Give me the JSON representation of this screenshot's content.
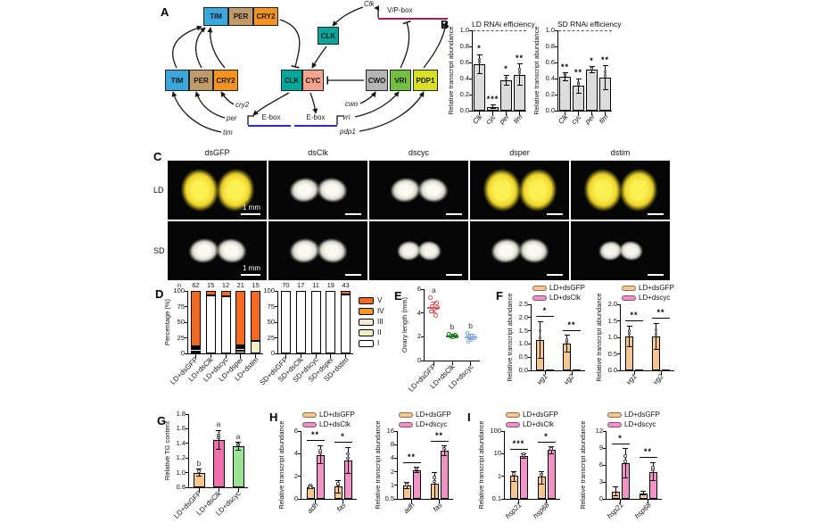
{
  "panels": {
    "A": "A",
    "B": "B",
    "C": "C",
    "D": "D",
    "E": "E",
    "F": "F",
    "G": "G",
    "H": "H",
    "I": "I"
  },
  "diagram": {
    "complex_top": [
      "TIM",
      "PER",
      "CRY2"
    ],
    "proteins_left": [
      "TIM",
      "PER",
      "CRY2"
    ],
    "clk_gene": "Clk",
    "vp_box": "V/P-box",
    "clk_protein": "CLK",
    "core": [
      "CLK",
      "CYC"
    ],
    "right_proteins": [
      "CWO",
      "VRI",
      "PDP1"
    ],
    "ebox_left": "E-box",
    "ebox_right": "E-box",
    "genes_left": [
      "cry2",
      "per",
      "tim"
    ],
    "genes_right": [
      "cwo",
      "vri",
      "pdp1"
    ],
    "colors": {
      "tim": "#3BA7DD",
      "per": "#C19A6B",
      "cry2": "#F7941D",
      "clk": "#00A79C",
      "cyc": "#F5A28E",
      "cwo": "#B5B5B5",
      "vri": "#72BF44",
      "pdp1": "#D9E021",
      "vp_line": "#9E1F63",
      "ebox_line": "#2B2BD5"
    }
  },
  "panelC": {
    "col_labels": [
      "dsGFP",
      "dsClk",
      "dscyc",
      "dsper",
      "dstim"
    ],
    "row_labels": [
      "LD",
      "SD"
    ],
    "scale_bar": "1 mm",
    "tiles": [
      [
        "yellow-large",
        "white-medium",
        "white-medium",
        "yellow-large",
        "yellow-large"
      ],
      [
        "white-medium",
        "white-medium",
        "white-small",
        "white-medium",
        "white-small"
      ]
    ]
  },
  "stages": [
    {
      "label": "V",
      "color": "#F26A21"
    },
    {
      "label": "IV",
      "color": "#F79420"
    },
    {
      "label": "III",
      "color": "#F3E8D0"
    },
    {
      "label": "II",
      "color": "#EFEFC2"
    },
    {
      "label": "I",
      "color": "#FFFFFF"
    }
  ],
  "charts": {
    "b1": {
      "type": "bars",
      "title": "LD RNAi efficiency",
      "ylabel": "Relative transcript abundance",
      "ymin": 0,
      "ymax": 1.0,
      "dash": 1.0,
      "dots": true,
      "yticks": [
        {
          "v": 0,
          "t": "0.0"
        },
        {
          "v": 0.2,
          "t": "0.2"
        },
        {
          "v": 0.4,
          "t": "0.4"
        },
        {
          "v": 0.6,
          "t": "0.6"
        },
        {
          "v": 0.8,
          "t": "0.8"
        },
        {
          "v": 1.0,
          "t": "1.0"
        }
      ],
      "categories": [
        "Clk",
        "cyc",
        "per",
        "tim"
      ],
      "italic": true,
      "series": [
        {
          "name": "",
          "color": "#DCDCDC",
          "values": [
            0.58,
            0.05,
            0.38,
            0.45
          ],
          "err": [
            0.12,
            0.02,
            0.06,
            0.13
          ]
        }
      ],
      "sig": [
        "*",
        "***",
        "*",
        "**"
      ],
      "sig_mode": "bar"
    },
    "b2": {
      "type": "bars",
      "title": "SD RNAi efficiency",
      "ylabel": "Relative transcript abundance",
      "ymin": 0,
      "ymax": 1.0,
      "dash": 1.0,
      "dots": true,
      "yticks": [
        {
          "v": 0,
          "t": "0.0"
        },
        {
          "v": 0.2,
          "t": "0.2"
        },
        {
          "v": 0.4,
          "t": "0.4"
        },
        {
          "v": 0.6,
          "t": "0.6"
        },
        {
          "v": 0.8,
          "t": "0.8"
        },
        {
          "v": 1.0,
          "t": "1.0"
        }
      ],
      "categories": [
        "Clk",
        "cyc",
        "per",
        "tim"
      ],
      "italic": true,
      "series": [
        {
          "name": "",
          "color": "#DCDCDC",
          "values": [
            0.42,
            0.31,
            0.51,
            0.41
          ],
          "err": [
            0.05,
            0.09,
            0.04,
            0.15
          ]
        }
      ],
      "sig": [
        "**",
        "**",
        "*",
        "**"
      ],
      "sig_mode": "bar"
    },
    "d1": {
      "type": "stacked",
      "ylabel": "Percentage (%)",
      "ymin": 0,
      "ymax": 100,
      "yticks": [
        {
          "v": 0,
          "t": "0"
        },
        {
          "v": 25,
          "t": "25"
        },
        {
          "v": 50,
          "t": "50"
        },
        {
          "v": 75,
          "t": "75"
        },
        {
          "v": 100,
          "t": "100"
        }
      ],
      "categories": [
        "LD+dsGFP",
        "LD+dsClk",
        "LD+dscyc",
        "LD+dsper",
        "LD+dstim"
      ],
      "stacks": [
        [
          89,
          3,
          3,
          3,
          2
        ],
        [
          7,
          0,
          0,
          0,
          93
        ],
        [
          9,
          0,
          0,
          0,
          91
        ],
        [
          87,
          2,
          3,
          4,
          4
        ],
        [
          80,
          0,
          0,
          20,
          0
        ]
      ],
      "n": [
        "62",
        "15",
        "12",
        "21",
        "15"
      ],
      "n_prefix": "n"
    },
    "d2": {
      "type": "stacked",
      "ymin": 0,
      "ymax": 100,
      "yticks": [
        {
          "v": 0,
          "t": "0"
        },
        {
          "v": 25,
          "t": "25"
        },
        {
          "v": 50,
          "t": "50"
        },
        {
          "v": 75,
          "t": "75"
        },
        {
          "v": 100,
          "t": "100"
        }
      ],
      "categories": [
        "SD+dsGFP",
        "SD+dsClk",
        "SD+dscyc",
        "SD+dsper",
        "SD+dstim"
      ],
      "stacks": [
        [
          0,
          0,
          0,
          0,
          100
        ],
        [
          0,
          0,
          0,
          0,
          100
        ],
        [
          0,
          0,
          0,
          0,
          100
        ],
        [
          0,
          0,
          0,
          0,
          100
        ],
        [
          5,
          0,
          0,
          0,
          95
        ]
      ],
      "n": [
        "70",
        "17",
        "11",
        "19",
        "43"
      ]
    },
    "e": {
      "type": "scatter",
      "ylabel": "Ovary length (mm)",
      "ymin": 0,
      "ymax": 6,
      "yticks": [
        {
          "v": 0,
          "t": "0"
        },
        {
          "v": 2,
          "t": "2"
        },
        {
          "v": 4,
          "t": "4"
        },
        {
          "v": 6,
          "t": "6"
        }
      ],
      "categories": [
        "LD+dsGFP",
        "LD+dsClk",
        "LD+dscyc"
      ],
      "groups": [
        {
          "color": "#D85C5C",
          "letter": "a",
          "mean": 4.5,
          "err": 0.45,
          "points": [
            5.3,
            4.85,
            4.6,
            4.5,
            4.35,
            4.15,
            3.8
          ]
        },
        {
          "color": "#1F7A1F",
          "letter": "b",
          "mean": 2.1,
          "err": 0.08,
          "points": [
            2.22,
            2.15,
            2.1,
            2.05,
            2.0
          ]
        },
        {
          "color": "#7FA9D9",
          "letter": "b",
          "mean": 2.0,
          "err": 0.2,
          "points": [
            2.3,
            2.1,
            2.0,
            1.9,
            1.75,
            1.62
          ]
        }
      ]
    },
    "f1": {
      "type": "bars",
      "legend": true,
      "ylabel": "Relative transcript abundance",
      "ymin": 0,
      "ymax": 2.5,
      "dots": true,
      "yticks": [
        {
          "v": 0,
          "t": "0.0"
        },
        {
          "v": 0.5,
          "t": "0.5"
        },
        {
          "v": 1.0,
          "t": "1.0"
        },
        {
          "v": 1.5,
          "t": "1.5"
        },
        {
          "v": 2.0,
          "t": "2.0"
        },
        {
          "v": 2.5,
          "t": "2.5"
        }
      ],
      "categories": [
        "vg1",
        "vg2"
      ],
      "italic": true,
      "series": [
        {
          "name": "LD+dsGFP",
          "color": "#F7C78E",
          "values": [
            1.15,
            1.0
          ],
          "err": [
            0.7,
            0.32
          ]
        },
        {
          "name": "LD+dsClk",
          "color": "#F193C7",
          "values": [
            0.03,
            0.03
          ],
          "err": [
            0,
            0
          ]
        }
      ],
      "sig": [
        "*",
        "**"
      ],
      "sig_mode": "pair"
    },
    "f2": {
      "type": "bars",
      "legend": true,
      "ylabel": "Relative transcript abundance",
      "ymin": 0,
      "ymax": 2.0,
      "dots": true,
      "yticks": [
        {
          "v": 0,
          "t": "0.0"
        },
        {
          "v": 0.5,
          "t": "0.5"
        },
        {
          "v": 1.0,
          "t": "1.0"
        },
        {
          "v": 1.5,
          "t": "1.5"
        },
        {
          "v": 2.0,
          "t": "2.0"
        }
      ],
      "categories": [
        "vg1",
        "vg2"
      ],
      "italic": true,
      "series": [
        {
          "name": "LD+dsGFP",
          "color": "#F7C78E",
          "values": [
            1.03,
            1.03
          ],
          "err": [
            0.32,
            0.4
          ]
        },
        {
          "name": "LD+dscyc",
          "color": "#F193C7",
          "values": [
            0.03,
            0.03
          ],
          "err": [
            0,
            0
          ]
        }
      ],
      "sig": [
        "**",
        "**"
      ],
      "sig_mode": "pair"
    },
    "g": {
      "type": "bars",
      "ylabel": "Relative TG content",
      "ymin": 0.8,
      "ymax": 1.8,
      "dots": true,
      "yticks": [
        {
          "v": 0.8,
          "t": "0.8"
        },
        {
          "v": 1.0,
          "t": "1.0"
        },
        {
          "v": 1.2,
          "t": "1.2"
        },
        {
          "v": 1.4,
          "t": "1.4"
        },
        {
          "v": 1.6,
          "t": "1.6"
        },
        {
          "v": 1.8,
          "t": "1.8"
        }
      ],
      "categories": [
        "LD+dsGFP",
        "LD+dsClk",
        "LD+dscyc"
      ],
      "series": [
        {
          "name": "",
          "colors": [
            "#F7C78E",
            "#F170AC",
            "#9BE493"
          ],
          "values": [
            1.0,
            1.45,
            1.36
          ],
          "err": [
            0.05,
            0.13,
            0.05
          ]
        }
      ],
      "letters": [
        "b",
        "a",
        "a"
      ]
    },
    "h1": {
      "type": "bars",
      "legend": true,
      "ylabel": "Relative transcript abundance",
      "ymin": 0,
      "ymax": 6,
      "dots": true,
      "yticks": [
        {
          "v": 0,
          "t": "0"
        },
        {
          "v": 2,
          "t": "2"
        },
        {
          "v": 4,
          "t": "4"
        },
        {
          "v": 6,
          "t": "6"
        }
      ],
      "categories": [
        "adh",
        "fas"
      ],
      "italic": true,
      "series": [
        {
          "name": "LD+dsGFP",
          "color": "#F7C78E",
          "values": [
            1.0,
            1.1
          ],
          "err": [
            0.12,
            0.55
          ]
        },
        {
          "name": "LD+dsClk",
          "color": "#F193C7",
          "values": [
            3.9,
            3.4
          ],
          "err": [
            0.8,
            1.15
          ]
        }
      ],
      "sig": [
        "**",
        "*"
      ],
      "sig_mode": "pair"
    },
    "h2": {
      "type": "bars",
      "legend": true,
      "ylabel": "Relative transcript abundance",
      "scale": "log",
      "ymin": 0.5,
      "ymax": 16,
      "dots": true,
      "yticks": [
        {
          "v": 0.5,
          "t": "0.5"
        },
        {
          "v": 1,
          "t": "1"
        },
        {
          "v": 2,
          "t": "2"
        },
        {
          "v": 4,
          "t": "4"
        },
        {
          "v": 8,
          "t": "8"
        },
        {
          "v": 16,
          "t": "16"
        }
      ],
      "categories": [
        "adh",
        "fas"
      ],
      "italic": true,
      "series": [
        {
          "name": "LD+dsGFP",
          "color": "#F7C78E",
          "values": [
            1.0,
            1.1
          ],
          "err": [
            0.15,
            0.8
          ]
        },
        {
          "name": "LD+dscyc",
          "color": "#F193C7",
          "values": [
            2.2,
            6.0
          ],
          "err": [
            0.3,
            1.5
          ]
        }
      ],
      "sig": [
        "**",
        "**"
      ],
      "sig_mode": "pair"
    },
    "i1": {
      "type": "bars",
      "legend": true,
      "ylabel": "Relative transcript abundance",
      "scale": "log",
      "ymin": 0.1,
      "ymax": 100,
      "dots": true,
      "yticks": [
        {
          "v": 0.1,
          "t": "0.1"
        },
        {
          "v": 1,
          "t": "1"
        },
        {
          "v": 10,
          "t": "10"
        },
        {
          "v": 100,
          "t": "100"
        }
      ],
      "categories": [
        "hsp21",
        "hsp68"
      ],
      "italic": true,
      "series": [
        {
          "name": "LD+dsGFP",
          "color": "#F7C78E",
          "values": [
            1.1,
            1.0
          ],
          "err": [
            0.5,
            0.55
          ]
        },
        {
          "name": "LD+dsClk",
          "color": "#F193C7",
          "values": [
            8,
            15
          ],
          "err": [
            1.6,
            5
          ]
        }
      ],
      "sig": [
        "***",
        "*"
      ],
      "sig_mode": "pair"
    },
    "i2": {
      "type": "bars",
      "legend": true,
      "ylabel": "Relative transcript abundance",
      "ymin": 0,
      "ymax": 12,
      "dots": true,
      "yticks": [
        {
          "v": 0,
          "t": "0"
        },
        {
          "v": 3,
          "t": "3"
        },
        {
          "v": 6,
          "t": "6"
        },
        {
          "v": 9,
          "t": "9"
        },
        {
          "v": 12,
          "t": "12"
        }
      ],
      "categories": [
        "hsp21",
        "hsp68"
      ],
      "italic": true,
      "series": [
        {
          "name": "LD+dsGFP",
          "color": "#F7C78E",
          "values": [
            1.3,
            1.0
          ],
          "err": [
            0.8,
            0.3
          ]
        },
        {
          "name": "LD+dscyc",
          "color": "#F193C7",
          "values": [
            6.3,
            4.8
          ],
          "err": [
            2.6,
            1.6
          ]
        }
      ],
      "sig": [
        "*",
        "**"
      ],
      "sig_mode": "pair"
    }
  }
}
